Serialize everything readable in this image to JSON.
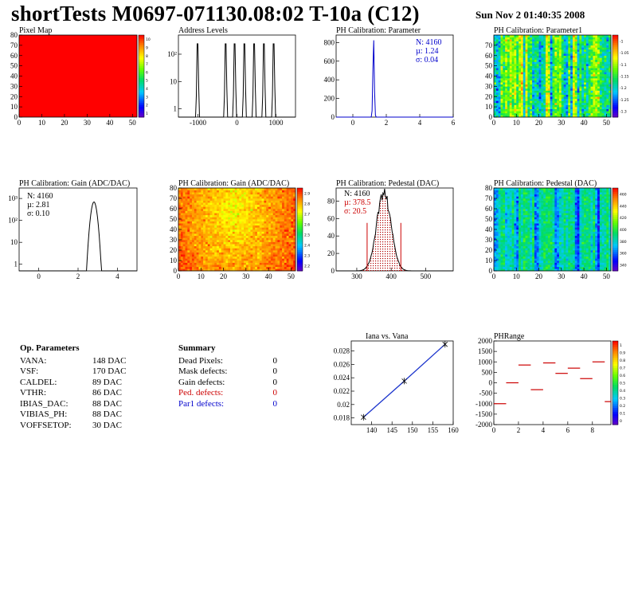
{
  "header": {
    "title": "shortTests M0697-071130.08:02 T-10a (C12)",
    "date": "Sun Nov  2 01:40:35 2008"
  },
  "colors": {
    "hist_black": "#000000",
    "hist_blue": "#0000cc",
    "stat_red": "#cc0000",
    "stat_blue": "#0000cc",
    "fit_blue": "#1a33cc",
    "red_line": "#cc0000"
  },
  "op_parameters": {
    "title": "Op. Parameters",
    "rows": [
      {
        "name": "VANA:",
        "value": "148 DAC"
      },
      {
        "name": "VSF:",
        "value": "170 DAC"
      },
      {
        "name": "CALDEL:",
        "value": "89 DAC"
      },
      {
        "name": "VTHR:",
        "value": "86 DAC"
      },
      {
        "name": "IBIAS_DAC:",
        "value": "88 DAC"
      },
      {
        "name": "VIBIAS_PH:",
        "value": "88 DAC"
      },
      {
        "name": "VOFFSETOP:",
        "value": "30 DAC"
      }
    ]
  },
  "summary": {
    "title": "Summary",
    "rows": [
      {
        "name": "Dead Pixels:",
        "value": "0",
        "color": "#000000"
      },
      {
        "name": "Mask defects:",
        "value": "0",
        "color": "#000000"
      },
      {
        "name": "Gain defects:",
        "value": "0",
        "color": "#000000"
      },
      {
        "name": "Ped. defects:",
        "value": "0",
        "color": "#cc0000"
      },
      {
        "name": "Par1 defects:",
        "value": "0",
        "color": "#0000cc"
      }
    ]
  },
  "chart_data": [
    {
      "id": "pixelmap",
      "type": "heatmap",
      "title": "Pixel Map",
      "xlim": [
        0,
        52
      ],
      "ylim": [
        0,
        80
      ],
      "xticks": [
        0,
        10,
        20,
        30,
        40,
        50
      ],
      "yticks": [
        0,
        10,
        20,
        30,
        40,
        50,
        60,
        70,
        80
      ],
      "palette_ticks": [
        "10",
        "9",
        "8",
        "7",
        "6",
        "5",
        "4",
        "3",
        "2",
        "1"
      ],
      "fill_value": 10
    },
    {
      "id": "addrlevels",
      "type": "line",
      "title": "Address Levels",
      "ylog": true,
      "xlim": [
        -1500,
        1500
      ],
      "xticks": [
        -1000,
        0,
        1000
      ],
      "yticks": [
        {
          "v": 1,
          "label": "1"
        },
        {
          "v": 10,
          "label": "10"
        },
        {
          "v": 100,
          "label": "10²"
        }
      ],
      "ylim_log": [
        0.5,
        500
      ],
      "peaks": [
        -1000,
        -280,
        -50,
        200,
        450,
        700,
        950
      ],
      "peak_height": 240
    },
    {
      "id": "phparam",
      "type": "line",
      "title": "PH Calibration: Parameter",
      "xlim": [
        -1,
        6
      ],
      "ylim": [
        0,
        880
      ],
      "xticks": [
        0,
        2,
        4,
        6
      ],
      "yticks": [
        0,
        200,
        400,
        600,
        800
      ],
      "mean": 1.24,
      "sigma": 0.04,
      "peak": 850,
      "stats": [
        "N: 4160",
        "µ: 1.24",
        "σ: 0.04"
      ]
    },
    {
      "id": "phparam1",
      "type": "heatmap",
      "title": "PH Calibration: Parameter1",
      "xlim": [
        0,
        52
      ],
      "ylim": [
        0,
        80
      ],
      "xticks": [
        0,
        10,
        20,
        30,
        40,
        50
      ],
      "yticks": [
        0,
        10,
        20,
        30,
        40,
        50,
        60,
        70
      ],
      "palette_ticks": [
        "-1",
        "-1.05",
        "-1.1",
        "-1.15",
        "-1.2",
        "-1.25",
        "-1.3"
      ]
    },
    {
      "id": "gain",
      "type": "line",
      "title": "PH Calibration: Gain (ADC/DAC)",
      "ylog": true,
      "xlim": [
        -1,
        5
      ],
      "xticks": [
        0,
        2,
        4
      ],
      "yticks": [
        {
          "v": 1,
          "label": "1"
        },
        {
          "v": 10,
          "label": "10"
        },
        {
          "v": 100,
          "label": "10²"
        },
        {
          "v": 1000,
          "label": "10³"
        }
      ],
      "ylim_log": [
        0.5,
        3000
      ],
      "mean": 2.81,
      "sigma": 0.1,
      "peak": 700,
      "stats": [
        "N: 4160",
        "µ: 2.81",
        "σ: 0.10"
      ]
    },
    {
      "id": "gainmap",
      "type": "heatmap",
      "title": "PH Calibration: Gain (ADC/DAC)",
      "xlim": [
        0,
        52
      ],
      "ylim": [
        0,
        80
      ],
      "xticks": [
        0,
        10,
        20,
        30,
        40,
        50
      ],
      "yticks": [
        0,
        10,
        20,
        30,
        40,
        50,
        60,
        70,
        80
      ],
      "palette_ticks": [
        "2.9",
        "2.8",
        "2.7",
        "2.6",
        "2.5",
        "2.4",
        "2.3",
        "2.2"
      ]
    },
    {
      "id": "pedestal",
      "type": "line",
      "title": "PH Calibration: Pedestal (DAC)",
      "xlim": [
        240,
        580
      ],
      "ylim": [
        0,
        95
      ],
      "xticks": [
        300,
        400,
        500
      ],
      "yticks": [
        0,
        20,
        40,
        60,
        80
      ],
      "mean": 378.5,
      "sigma": 20.5,
      "peak": 90,
      "cuts": [
        330,
        428
      ],
      "stats": [
        "N: 4160",
        "µ: 378.5",
        "σ: 20.5"
      ]
    },
    {
      "id": "pedmap",
      "type": "heatmap",
      "title": "PH Calibration: Pedestal (DAC)",
      "xlim": [
        0,
        52
      ],
      "ylim": [
        0,
        80
      ],
      "xticks": [
        0,
        10,
        20,
        30,
        40,
        50
      ],
      "yticks": [
        0,
        10,
        20,
        30,
        40,
        50,
        60,
        70,
        80
      ],
      "palette_ticks": [
        "460",
        "440",
        "420",
        "400",
        "380",
        "360",
        "340"
      ]
    },
    {
      "id": "ianavana",
      "type": "scatter",
      "title": "Iana vs. Vana",
      "xlim": [
        135,
        160
      ],
      "ylim": [
        0.017,
        0.0295
      ],
      "xticks": [
        140,
        145,
        150,
        155,
        160
      ],
      "yticks": [
        0.018,
        0.02,
        0.022,
        0.024,
        0.026,
        0.028
      ],
      "x": [
        138,
        148,
        158
      ],
      "y": [
        0.0181,
        0.0235,
        0.029
      ]
    },
    {
      "id": "phrange",
      "type": "scatter",
      "title": "PHRange",
      "xlim": [
        0,
        9.5
      ],
      "ylim": [
        -2000,
        2000
      ],
      "xticks": [
        0,
        2,
        4,
        6,
        8
      ],
      "yticks": [
        -2000,
        -1500,
        -1000,
        -500,
        0,
        500,
        1000,
        1500,
        2000
      ],
      "palette_ticks": [
        "1",
        "0.9",
        "0.8",
        "0.7",
        "0.6",
        "0.5",
        "0.4",
        "0.3",
        "0.2",
        "0.1",
        "0"
      ],
      "x": [
        0.5,
        1.5,
        2.5,
        3.5,
        4.5,
        5.5,
        6.5,
        7.5,
        8.5,
        9.5
      ],
      "y": [
        -1000,
        0,
        850,
        -330,
        950,
        450,
        700,
        200,
        1000,
        -900
      ]
    }
  ]
}
